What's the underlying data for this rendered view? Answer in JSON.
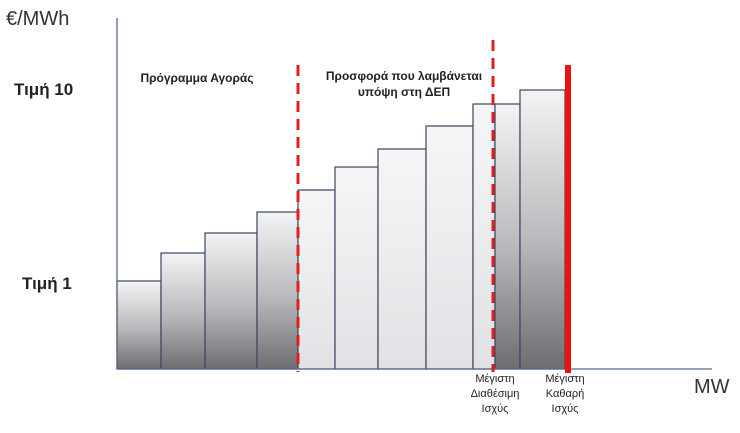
{
  "axes": {
    "y_label": "€/MWh",
    "x_label": "MW"
  },
  "price_labels": {
    "top": "Τιμή 10",
    "bottom": "Τιμή 1"
  },
  "regions": {
    "left": "Πρόγραμμα Αγοράς",
    "middle": "Προσφορά που λαμβάνεται υπόψη στη ΔΕΠ"
  },
  "markers": {
    "max_available": "Μέγιστη Διαθέσιμη Ισχύς",
    "max_net": "Μέγιστη Καθαρή Ισχύς"
  },
  "colors": {
    "dashed_line": "#e02020",
    "max_net_line": "#ee1111",
    "step_outline": "#3a4660",
    "axis": "#5b6a8a"
  }
}
